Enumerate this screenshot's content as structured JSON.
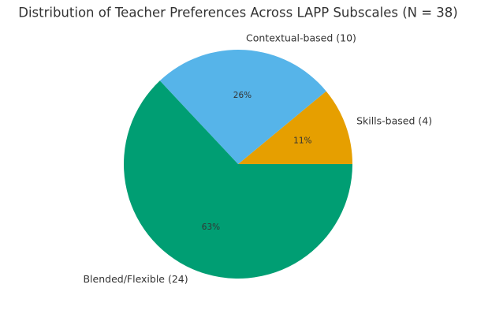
{
  "chart_data": {
    "type": "pie",
    "title": "Distribution of Teacher Preferences Across LAPP Subscales (N = 38)",
    "categories": [
      "Skills-based (4)",
      "Contextual-based (10)",
      "Blended/Flexible (24)"
    ],
    "values": [
      11,
      26,
      63
    ],
    "value_labels": [
      "11%",
      "26%",
      "63%"
    ],
    "colors": [
      "#E69F00",
      "#56B4E9",
      "#009E73"
    ]
  }
}
